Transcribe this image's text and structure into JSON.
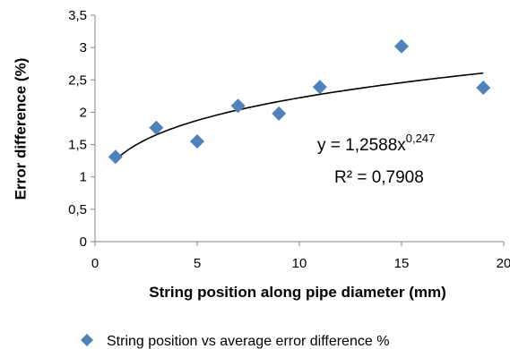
{
  "chart_data": {
    "type": "scatter",
    "xlabel": "String position along pipe diameter (mm)",
    "ylabel": "Error difference (%)",
    "xlim": [
      0,
      20
    ],
    "ylim": [
      0,
      3.5
    ],
    "xticks": [
      "0",
      "5",
      "10",
      "15",
      "20"
    ],
    "yticks": [
      "0",
      "0,5",
      "1",
      "1,5",
      "2",
      "2,5",
      "3",
      "3,5"
    ],
    "grid": false,
    "legend_position": "bottom",
    "series": [
      {
        "name": "String position vs average error difference %",
        "marker": "diamond",
        "color": "#4F81BD",
        "x": [
          1,
          3,
          5,
          7,
          9,
          11,
          15,
          19
        ],
        "y": [
          1.31,
          1.76,
          1.55,
          2.1,
          1.98,
          2.39,
          3.02,
          2.38
        ]
      }
    ],
    "trendline": {
      "type": "power",
      "coefficient": 1.2588,
      "exponent": 0.247,
      "x_range": [
        1,
        19
      ],
      "color": "#000000",
      "equation_prefix": "y = 1,2588x",
      "equation_exponent": "0,247",
      "r_squared_label": "R² = 0,7908"
    }
  }
}
